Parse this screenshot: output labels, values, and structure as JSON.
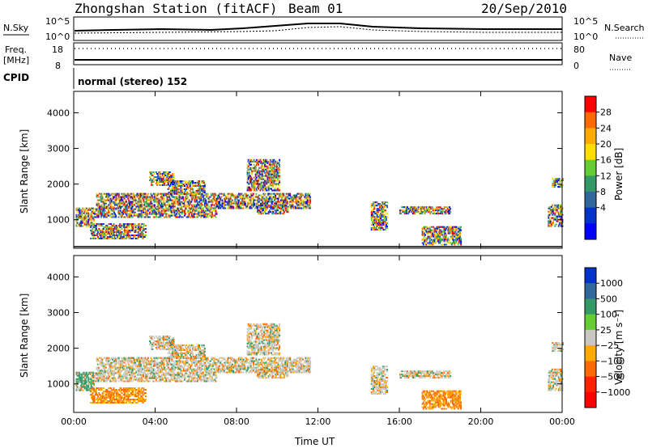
{
  "header": {
    "station": "Zhongshan Station (fitACF)",
    "beam": "Beam 01",
    "date": "20/Sep/2010"
  },
  "panels": {
    "nsky_label": "N.Sky",
    "nsky_ticks": [
      "10^5",
      "10^0"
    ],
    "nsearch_label": "N.Search",
    "nsearch_ticks": [
      "10^5",
      "10^0"
    ],
    "freq_label": "Freq.",
    "freq_unit": "[MHz]",
    "freq_ticks": [
      "18",
      "8"
    ],
    "nave_label": "Nave",
    "nave_ticks": [
      "80",
      "0"
    ],
    "cpid_label": "CPID",
    "cpid_text": "normal (stereo) 152"
  },
  "chart_data": [
    {
      "type": "heatmap",
      "name": "power",
      "ylabel": "Slant Range [km]",
      "yticks": [
        1000,
        2000,
        3000,
        4000
      ],
      "ylim": [
        200,
        4600
      ],
      "xticks": [
        "00:00",
        "04:00",
        "08:00",
        "12:00",
        "16:00",
        "20:00",
        "00:00"
      ],
      "xlim_hours": [
        0,
        24
      ],
      "colorbar": {
        "label": "Power [dB]",
        "ticks": [
          "28",
          "24",
          "20",
          "16",
          "12",
          "8",
          "4"
        ],
        "colors": [
          "#ff0000",
          "#ff6a00",
          "#ffaa00",
          "#ffdd00",
          "#66cc33",
          "#339966",
          "#336699",
          "#0033cc",
          "#0000ff"
        ]
      },
      "echo_regions": [
        {
          "t0": 0.1,
          "t1": 1.0,
          "r0": 800,
          "r1": 1300
        },
        {
          "t0": 0.8,
          "t1": 3.5,
          "r0": 450,
          "r1": 900
        },
        {
          "t0": 1.0,
          "t1": 7.0,
          "r0": 1050,
          "r1": 1300
        },
        {
          "t0": 1.1,
          "t1": 11.6,
          "r0": 1300,
          "r1": 1750
        },
        {
          "t0": 3.7,
          "t1": 4.9,
          "r0": 1950,
          "r1": 2350
        },
        {
          "t0": 4.6,
          "t1": 6.4,
          "r0": 1700,
          "r1": 2100
        },
        {
          "t0": 8.5,
          "t1": 10.1,
          "r0": 1800,
          "r1": 2700
        },
        {
          "t0": 9.0,
          "t1": 10.5,
          "r0": 1150,
          "r1": 1400
        },
        {
          "t0": 14.6,
          "t1": 15.4,
          "r0": 700,
          "r1": 1500
        },
        {
          "t0": 16.0,
          "t1": 18.5,
          "r0": 1150,
          "r1": 1350
        },
        {
          "t0": 17.1,
          "t1": 19.0,
          "r0": 280,
          "r1": 800
        },
        {
          "t0": 23.3,
          "t1": 24.0,
          "r0": 800,
          "r1": 1400
        },
        {
          "t0": 23.5,
          "t1": 24.0,
          "r0": 1900,
          "r1": 2150
        }
      ]
    },
    {
      "type": "heatmap",
      "name": "velocity",
      "ylabel": "Slant Range [km]",
      "yticks": [
        1000,
        2000,
        3000,
        4000
      ],
      "ylim": [
        200,
        4600
      ],
      "xticks": [
        "00:00",
        "04:00",
        "08:00",
        "12:00",
        "16:00",
        "20:00",
        "00:00"
      ],
      "xlim_hours": [
        0,
        24
      ],
      "xlabel": "Time UT",
      "colorbar": {
        "label": "Velocity [m s⁻¹]",
        "ticks": [
          "1000",
          "500",
          "100",
          "25",
          "−25",
          "−100",
          "−500",
          "−1000"
        ],
        "colors": [
          "#0033cc",
          "#336699",
          "#339966",
          "#66cc33",
          "#c8c8c0",
          "#ffaa00",
          "#ff6a00",
          "#ff2200",
          "#ff0000"
        ]
      }
    }
  ]
}
